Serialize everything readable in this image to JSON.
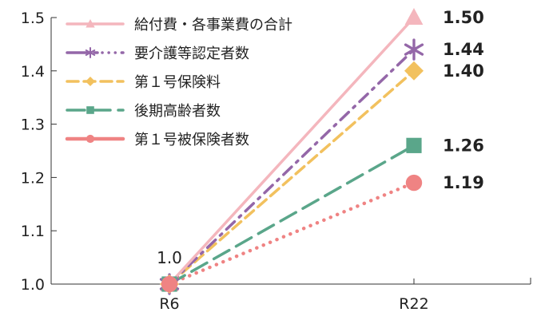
{
  "chart_data": {
    "type": "line",
    "categories": [
      "R6",
      "R22"
    ],
    "ylim": [
      1.0,
      1.5
    ],
    "yticks": [
      "1.0",
      "1.1",
      "1.2",
      "1.3",
      "1.4",
      "1.5"
    ],
    "grid": false,
    "legend_position": "top-left",
    "start_label": "1.0",
    "series": [
      {
        "name": "給付費・各事業費の合計",
        "values": [
          1.0,
          1.5
        ],
        "end_label": "1.50",
        "color": "#f4b6bd",
        "style": "solid",
        "marker": "triangle"
      },
      {
        "name": "要介護等認定者数",
        "values": [
          1.0,
          1.44
        ],
        "end_label": "1.44",
        "color": "#9467a8",
        "style": "dashdot",
        "marker": "asterisk"
      },
      {
        "name": "第１号保険料",
        "values": [
          1.0,
          1.4
        ],
        "end_label": "1.40",
        "color": "#f2c15e",
        "style": "dashed",
        "marker": "diamond"
      },
      {
        "name": "後期高齢者数",
        "values": [
          1.0,
          1.26
        ],
        "end_label": "1.26",
        "color": "#5aa68a",
        "style": "longdash",
        "marker": "square"
      },
      {
        "name": "第１号被保険者数",
        "values": [
          1.0,
          1.19
        ],
        "end_label": "1.19",
        "color": "#ef8383",
        "style": "dotted",
        "marker": "circle"
      }
    ]
  }
}
